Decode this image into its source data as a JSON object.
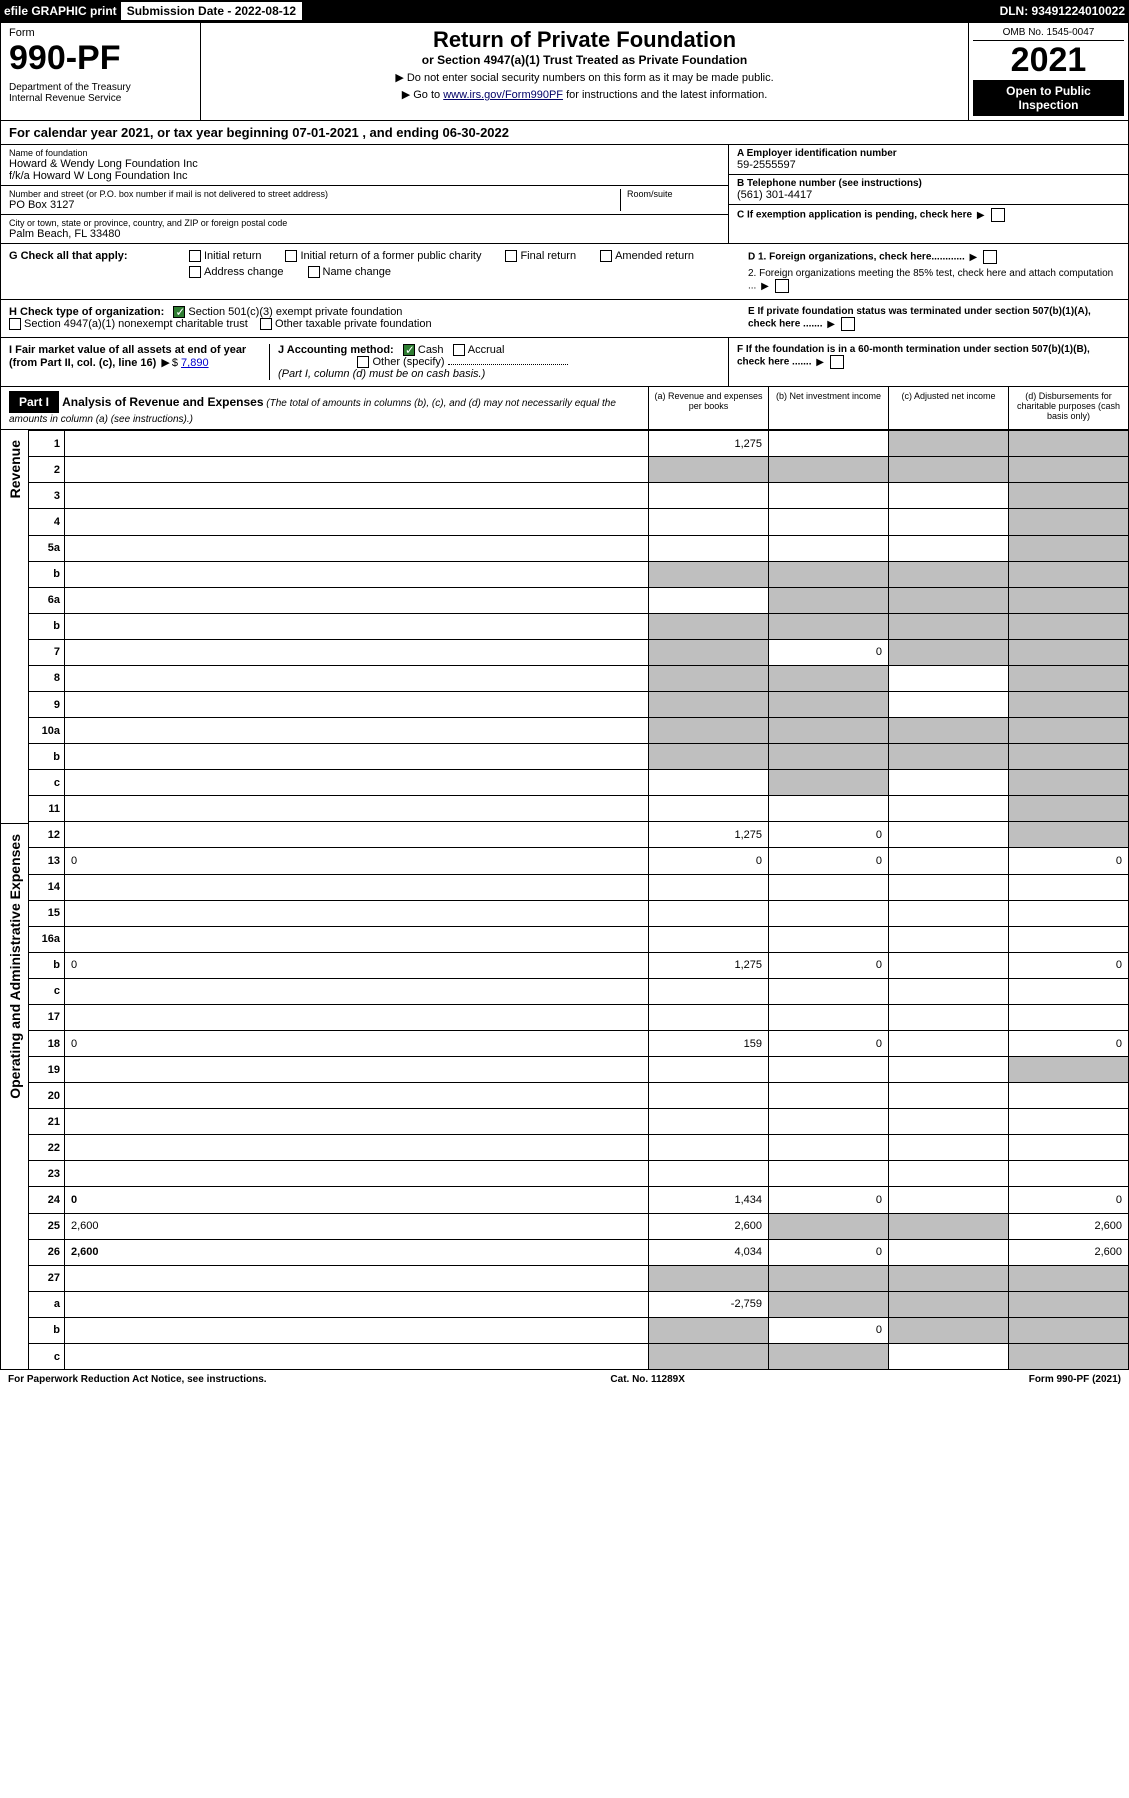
{
  "topbar": {
    "efile": "efile GRAPHIC print",
    "sub_label": "Submission Date - 2022-08-12",
    "dln": "DLN: 93491224010022"
  },
  "header": {
    "form_word": "Form",
    "form_num": "990-PF",
    "dept": "Department of the Treasury\nInternal Revenue Service",
    "title": "Return of Private Foundation",
    "sub": "or Section 4947(a)(1) Trust Treated as Private Foundation",
    "note1": "▶ Do not enter social security numbers on this form as it may be made public.",
    "note2_pre": "▶ Go to ",
    "note2_link": "www.irs.gov/Form990PF",
    "note2_post": " for instructions and the latest information.",
    "omb": "OMB No. 1545-0047",
    "year": "2021",
    "open": "Open to Public Inspection"
  },
  "calyear": "For calendar year 2021, or tax year beginning 07-01-2021                           , and ending 06-30-2022",
  "id": {
    "name_label": "Name of foundation",
    "name1": "Howard & Wendy Long Foundation Inc",
    "name2": "f/k/a Howard W Long Foundation Inc",
    "addr_label": "Number and street (or P.O. box number if mail is not delivered to street address)",
    "addr": "PO Box 3127",
    "room_label": "Room/suite",
    "city_label": "City or town, state or province, country, and ZIP or foreign postal code",
    "city": "Palm Beach, FL  33480",
    "ein_label": "A Employer identification number",
    "ein": "59-2555597",
    "phone_label": "B Telephone number (see instructions)",
    "phone": "(561) 301-4417",
    "c_label": "C If exemption application is pending, check here"
  },
  "g": {
    "label": "G Check all that apply:",
    "opts": [
      "Initial return",
      "Initial return of a former public charity",
      "Final return",
      "Amended return",
      "Address change",
      "Name change"
    ]
  },
  "d": {
    "d1": "D 1. Foreign organizations, check here............",
    "d2": "2. Foreign organizations meeting the 85% test, check here and attach computation ..."
  },
  "h": {
    "label": "H Check type of organization:",
    "opt1": "Section 501(c)(3) exempt private foundation",
    "opt2": "Section 4947(a)(1) nonexempt charitable trust",
    "opt3": "Other taxable private foundation"
  },
  "e": "E  If private foundation status was terminated under section 507(b)(1)(A), check here .......",
  "i": {
    "label": "I Fair market value of all assets at end of year (from Part II, col. (c), line 16)",
    "val": "7,890"
  },
  "j": {
    "label": "J Accounting method:",
    "cash": "Cash",
    "accrual": "Accrual",
    "other": "Other (specify)",
    "note": "(Part I, column (d) must be on cash basis.)"
  },
  "f": "F  If the foundation is in a 60-month termination under section 507(b)(1)(B), check here .......",
  "part1": {
    "tag": "Part I",
    "title": "Analysis of Revenue and Expenses",
    "title_note": " (The total of amounts in columns (b), (c), and (d) may not necessarily equal the amounts in column (a) (see instructions).)",
    "col_a": "(a)  Revenue and expenses per books",
    "col_b": "(b)  Net investment income",
    "col_c": "(c)  Adjusted net income",
    "col_d": "(d)  Disbursements for charitable purposes (cash basis only)"
  },
  "sidelabels": {
    "rev": "Revenue",
    "exp": "Operating and Administrative Expenses"
  },
  "rows": [
    {
      "n": "1",
      "d": "",
      "a": "1,275",
      "b": "",
      "c": "",
      "shade_c": true,
      "shade_d": true
    },
    {
      "n": "2",
      "d": "",
      "a": "",
      "b": "",
      "c": "",
      "shade_a": true,
      "shade_b": true,
      "shade_c": true,
      "shade_d": true
    },
    {
      "n": "3",
      "d": "",
      "a": "",
      "b": "",
      "c": "",
      "shade_d": true
    },
    {
      "n": "4",
      "d": "",
      "a": "",
      "b": "",
      "c": "",
      "shade_d": true
    },
    {
      "n": "5a",
      "d": "",
      "a": "",
      "b": "",
      "c": "",
      "shade_d": true
    },
    {
      "n": "b",
      "d": "",
      "a": "",
      "b": "",
      "c": "",
      "shade_a": true,
      "shade_b": true,
      "shade_c": true,
      "shade_d": true
    },
    {
      "n": "6a",
      "d": "",
      "a": "",
      "b": "",
      "c": "",
      "shade_b": true,
      "shade_c": true,
      "shade_d": true
    },
    {
      "n": "b",
      "d": "",
      "a": "",
      "b": "",
      "c": "",
      "shade_a": true,
      "shade_b": true,
      "shade_c": true,
      "shade_d": true
    },
    {
      "n": "7",
      "d": "",
      "a": "",
      "b": "0",
      "c": "",
      "shade_a": true,
      "shade_c": true,
      "shade_d": true
    },
    {
      "n": "8",
      "d": "",
      "a": "",
      "b": "",
      "c": "",
      "shade_a": true,
      "shade_b": true,
      "shade_d": true
    },
    {
      "n": "9",
      "d": "",
      "a": "",
      "b": "",
      "c": "",
      "shade_a": true,
      "shade_b": true,
      "shade_d": true
    },
    {
      "n": "10a",
      "d": "",
      "a": "",
      "b": "",
      "c": "",
      "shade_a": true,
      "shade_b": true,
      "shade_c": true,
      "shade_d": true
    },
    {
      "n": "b",
      "d": "",
      "a": "",
      "b": "",
      "c": "",
      "shade_a": true,
      "shade_b": true,
      "shade_c": true,
      "shade_d": true
    },
    {
      "n": "c",
      "d": "",
      "a": "",
      "b": "",
      "c": "",
      "shade_b": true,
      "shade_d": true
    },
    {
      "n": "11",
      "d": "",
      "a": "",
      "b": "",
      "c": "",
      "shade_d": true
    },
    {
      "n": "12",
      "d": "",
      "a": "1,275",
      "b": "0",
      "c": "",
      "shade_d": true,
      "bold": true
    },
    {
      "n": "13",
      "d": "0",
      "a": "0",
      "b": "0",
      "c": ""
    },
    {
      "n": "14",
      "d": "",
      "a": "",
      "b": "",
      "c": ""
    },
    {
      "n": "15",
      "d": "",
      "a": "",
      "b": "",
      "c": ""
    },
    {
      "n": "16a",
      "d": "",
      "a": "",
      "b": "",
      "c": ""
    },
    {
      "n": "b",
      "d": "0",
      "a": "1,275",
      "b": "0",
      "c": ""
    },
    {
      "n": "c",
      "d": "",
      "a": "",
      "b": "",
      "c": ""
    },
    {
      "n": "17",
      "d": "",
      "a": "",
      "b": "",
      "c": ""
    },
    {
      "n": "18",
      "d": "0",
      "a": "159",
      "b": "0",
      "c": ""
    },
    {
      "n": "19",
      "d": "",
      "a": "",
      "b": "",
      "c": "",
      "shade_d": true
    },
    {
      "n": "20",
      "d": "",
      "a": "",
      "b": "",
      "c": ""
    },
    {
      "n": "21",
      "d": "",
      "a": "",
      "b": "",
      "c": ""
    },
    {
      "n": "22",
      "d": "",
      "a": "",
      "b": "",
      "c": ""
    },
    {
      "n": "23",
      "d": "",
      "a": "",
      "b": "",
      "c": ""
    },
    {
      "n": "24",
      "d": "0",
      "a": "1,434",
      "b": "0",
      "c": "",
      "bold": true
    },
    {
      "n": "25",
      "d": "2,600",
      "a": "2,600",
      "b": "",
      "c": "",
      "shade_b": true,
      "shade_c": true
    },
    {
      "n": "26",
      "d": "2,600",
      "a": "4,034",
      "b": "0",
      "c": "",
      "bold": true
    },
    {
      "n": "27",
      "d": "",
      "a": "",
      "b": "",
      "c": "",
      "shade_a": true,
      "shade_b": true,
      "shade_c": true,
      "shade_d": true
    },
    {
      "n": "a",
      "d": "",
      "a": "-2,759",
      "b": "",
      "c": "",
      "shade_b": true,
      "shade_c": true,
      "shade_d": true,
      "bold": true
    },
    {
      "n": "b",
      "d": "",
      "a": "",
      "b": "0",
      "c": "",
      "shade_a": true,
      "shade_c": true,
      "shade_d": true,
      "bold": true
    },
    {
      "n": "c",
      "d": "",
      "a": "",
      "b": "",
      "c": "",
      "shade_a": true,
      "shade_b": true,
      "shade_d": true,
      "bold": true
    }
  ],
  "footer": {
    "l": "For Paperwork Reduction Act Notice, see instructions.",
    "c": "Cat. No. 11289X",
    "r": "Form 990-PF (2021)"
  },
  "colors": {
    "black": "#000000",
    "shade": "#bfbfbf",
    "link": "#0000cc",
    "check": "#2e7d32"
  }
}
